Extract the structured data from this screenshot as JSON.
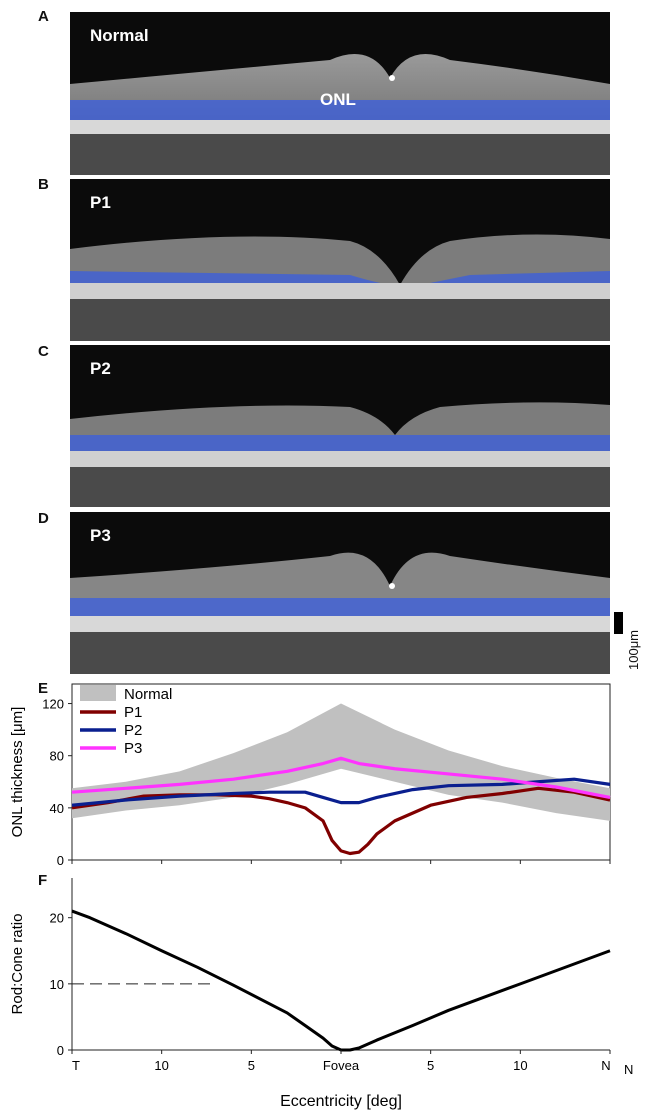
{
  "panels": [
    {
      "letter": "A",
      "label": "Normal",
      "extra_label": "ONL"
    },
    {
      "letter": "B",
      "label": "P1"
    },
    {
      "letter": "C",
      "label": "P2"
    },
    {
      "letter": "D",
      "label": "P3"
    },
    {
      "letter": "E"
    },
    {
      "letter": "F"
    }
  ],
  "scale_bar_label": "100μm",
  "colors": {
    "onl_band": "#3a5ee0",
    "normal_band": "#c0c0c0",
    "P1": "#800000",
    "P2": "#0a1f8f",
    "P3": "#ff33ff",
    "rod_cone": "#000000"
  },
  "chart_data": [
    {
      "type": "line",
      "ylabel": "ONL thickness [μm]",
      "ylim": [
        0,
        135
      ],
      "yticks": [
        0,
        40,
        80,
        120
      ],
      "xlim": [
        -15,
        15
      ],
      "legend": {
        "placement": "top-left",
        "entries": [
          "Normal",
          "P1",
          "P2",
          "P3"
        ]
      },
      "band": {
        "name": "Normal",
        "x": [
          -15,
          -12,
          -9,
          -6,
          -3,
          0,
          3,
          6,
          9,
          12,
          15
        ],
        "lower": [
          32,
          38,
          42,
          48,
          58,
          70,
          60,
          50,
          44,
          36,
          30
        ],
        "upper": [
          55,
          60,
          68,
          82,
          98,
          120,
          100,
          84,
          72,
          63,
          55
        ]
      },
      "series": [
        {
          "name": "P1",
          "x": [
            -15,
            -13,
            -11,
            -9,
            -7,
            -5,
            -4,
            -3,
            -2,
            -1,
            -0.5,
            0,
            0.5,
            1,
            1.5,
            2,
            3,
            5,
            7,
            9,
            11,
            13,
            15
          ],
          "values": [
            40,
            44,
            49,
            50,
            50,
            49,
            47,
            44,
            40,
            30,
            15,
            7,
            5,
            6,
            12,
            20,
            30,
            42,
            48,
            51,
            55,
            52,
            46
          ]
        },
        {
          "name": "P2",
          "x": [
            -15,
            -12,
            -9,
            -6,
            -4,
            -2,
            -1,
            0,
            1,
            2,
            4,
            6,
            9,
            11,
            13,
            15
          ],
          "values": [
            42,
            46,
            49,
            51,
            52,
            52,
            48,
            44,
            44,
            48,
            54,
            57,
            58,
            60,
            62,
            58
          ]
        },
        {
          "name": "P3",
          "x": [
            -15,
            -12,
            -9,
            -6,
            -3,
            -1,
            0,
            1,
            3,
            6,
            9,
            12,
            15
          ],
          "values": [
            52,
            55,
            58,
            62,
            68,
            74,
            78,
            74,
            70,
            66,
            62,
            56,
            48
          ]
        }
      ]
    },
    {
      "type": "line",
      "xlabel": "Eccentricity [deg]",
      "ylabel": "Rod:Cone ratio",
      "ylim": [
        0,
        26
      ],
      "yticks": [
        0,
        10,
        20
      ],
      "xlim": [
        -15,
        15
      ],
      "xtick_labels": [
        "T",
        "10",
        "5",
        "Fovea",
        "5",
        "10",
        "N"
      ],
      "xticks": [
        -15,
        -10,
        -5,
        0,
        5,
        10,
        15
      ],
      "reference_line": {
        "y": 10,
        "x_from": -15,
        "x_to": -7,
        "style": "dashed"
      },
      "series": [
        {
          "name": "Rod:Cone",
          "x": [
            -15,
            -14,
            -12,
            -10,
            -8,
            -6,
            -4,
            -3,
            -2,
            -1,
            -0.5,
            0,
            0.5,
            1,
            2,
            4,
            6,
            8,
            10,
            12,
            15
          ],
          "values": [
            21,
            20,
            17.6,
            15,
            12.5,
            9.8,
            7,
            5.6,
            3.7,
            1.8,
            0.6,
            0,
            0,
            0.3,
            1.5,
            3.7,
            6,
            8,
            10,
            12,
            15
          ]
        }
      ]
    }
  ]
}
